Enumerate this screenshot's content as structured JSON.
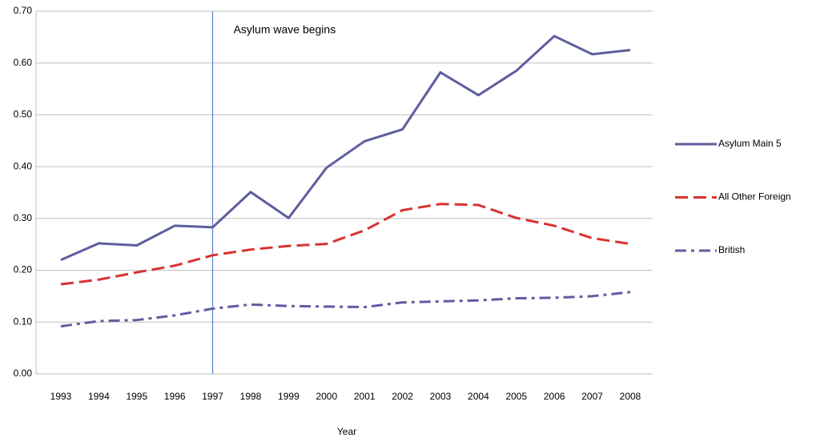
{
  "chart_data": {
    "type": "line",
    "x_label": "Year",
    "categories": [
      "1993",
      "1994",
      "1995",
      "1996",
      "1997",
      "1998",
      "1999",
      "2000",
      "2001",
      "2002",
      "2003",
      "2004",
      "2005",
      "2006",
      "2007",
      "2008"
    ],
    "series": [
      {
        "name": "Asylum Main 5",
        "color": "#5d5d9e",
        "dash": "solid",
        "values": [
          0.22,
          0.252,
          0.248,
          0.286,
          0.283,
          0.351,
          0.301,
          0.398,
          0.449,
          0.472,
          0.582,
          0.538,
          0.585,
          0.652,
          0.617,
          0.625
        ]
      },
      {
        "name": "All Other Foreign",
        "color": "#d93232",
        "dash": "dashed",
        "values": [
          0.173,
          0.182,
          0.196,
          0.209,
          0.229,
          0.24,
          0.247,
          0.251,
          0.277,
          0.316,
          0.328,
          0.326,
          0.301,
          0.286,
          0.262,
          0.251
        ]
      },
      {
        "name": "British",
        "color": "#5d5d9e",
        "dash": "dashdot",
        "values": [
          0.092,
          0.102,
          0.104,
          0.113,
          0.126,
          0.134,
          0.131,
          0.13,
          0.129,
          0.138,
          0.14,
          0.142,
          0.146,
          0.147,
          0.15,
          0.158
        ]
      }
    ],
    "ylim": [
      0,
      0.7
    ],
    "yticks": [
      {
        "value": 0,
        "label": "0.00"
      },
      {
        "value": 0.1,
        "label": "0.10"
      },
      {
        "value": 0.2,
        "label": "0.20"
      },
      {
        "value": 0.3,
        "label": "0.30"
      },
      {
        "value": 0.4,
        "label": "0.40"
      },
      {
        "value": 0.5,
        "label": "0.50"
      },
      {
        "value": 0.6,
        "label": "0.60"
      },
      {
        "value": 0.7,
        "label": "0.70"
      }
    ],
    "grid": true,
    "legend": "right",
    "annotations": [
      {
        "text": "Asylum wave begins",
        "x": "1997",
        "color": "#4472c4"
      }
    ]
  }
}
